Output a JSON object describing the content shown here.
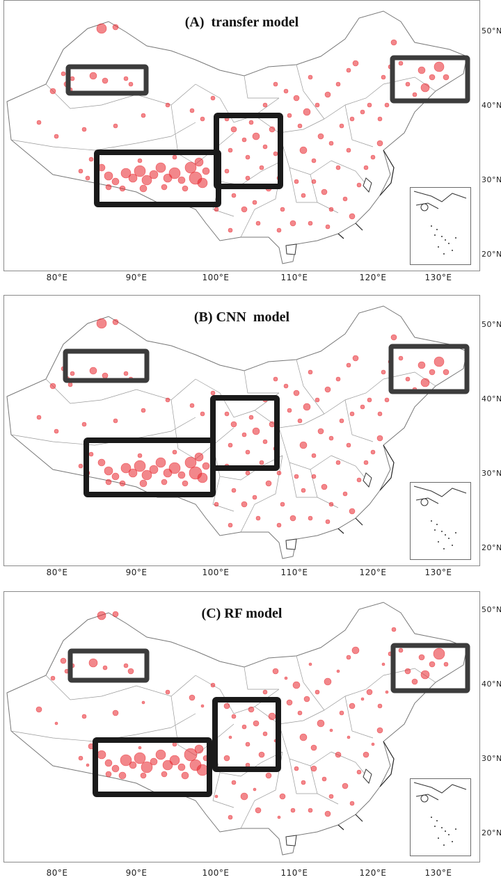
{
  "panels": [
    {
      "title": "(A)  transfer model"
    },
    {
      "title": "(B) CNN  model"
    },
    {
      "title": "(C) RF model"
    }
  ],
  "lon_labels": [
    "80°E",
    "90°E",
    "100°E",
    "110°E",
    "120°E",
    "130°E"
  ],
  "lat_labels": [
    "50°N",
    "40°N",
    "30°N",
    "20°N"
  ],
  "colors": {
    "station_dot": "#e8242b",
    "box_dark": "#1a1a1a",
    "box_gray": "#3c3c3c",
    "border": "#8a8a8a"
  },
  "highlight_regions": [
    "northwest-xinjiang",
    "northeast",
    "sichuan-shaanxi",
    "tibetan-plateau"
  ]
}
